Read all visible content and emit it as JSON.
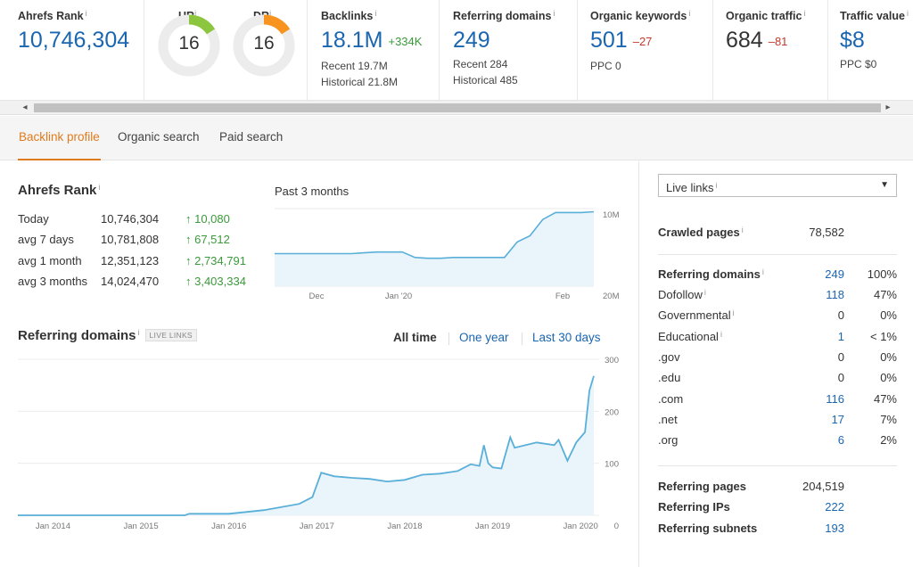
{
  "metrics": {
    "ahrefs_rank": {
      "label": "Ahrefs Rank",
      "info": "i",
      "value": "10,746,304"
    },
    "ur": {
      "label": "UR",
      "info": "i",
      "value": "16",
      "fraction": 0.16,
      "color": "#8cc63f"
    },
    "dr": {
      "label": "DR",
      "info": "i",
      "value": "16",
      "fraction": 0.16,
      "color": "#f7931e"
    },
    "backlinks": {
      "label": "Backlinks",
      "info": "i",
      "value": "18.1M",
      "delta": "+334K",
      "recent": "Recent 19.7M",
      "historical": "Historical 21.8M"
    },
    "referring_domains": {
      "label": "Referring domains",
      "info": "i",
      "value": "249",
      "recent": "Recent 284",
      "historical": "Historical 485"
    },
    "organic_keywords": {
      "label": "Organic keywords",
      "info": "i",
      "value": "501",
      "delta": "–27",
      "ppc": "PPC 0"
    },
    "organic_traffic": {
      "label": "Organic traffic",
      "info": "i",
      "value": "684",
      "delta": "–81"
    },
    "traffic_value": {
      "label": "Traffic value",
      "info": "i",
      "value": "$8",
      "ppc": "PPC $0"
    }
  },
  "scroll": {
    "left_arrow": "◂",
    "right_arrow": "▸"
  },
  "tabs": [
    {
      "label": "Backlink profile",
      "active": true
    },
    {
      "label": "Organic search",
      "active": false
    },
    {
      "label": "Paid search",
      "active": false
    }
  ],
  "ahrefs_rank_section": {
    "title": "Ahrefs Rank",
    "info": "i",
    "rows": [
      {
        "label": "Today",
        "value": "10,746,304",
        "delta": "↑ 10,080"
      },
      {
        "label": "avg 7 days",
        "value": "10,781,808",
        "delta": "↑ 67,512"
      },
      {
        "label": "avg 1 month",
        "value": "12,351,123",
        "delta": "↑ 2,734,791"
      },
      {
        "label": "avg 3 months",
        "value": "14,024,470",
        "delta": "↑ 3,403,334"
      }
    ],
    "chart_caption": "Past 3 months"
  },
  "referring_domains_section": {
    "title": "Referring domains",
    "info": "i",
    "badge": "LIVE LINKS",
    "time_tabs": [
      {
        "label": "All time",
        "active": true
      },
      {
        "label": "One year",
        "active": false
      },
      {
        "label": "Last 30 days",
        "active": false
      }
    ]
  },
  "chart_data": [
    {
      "type": "area",
      "title": "",
      "x_ticks": [
        "Dec",
        "Jan '20",
        "Feb"
      ],
      "y_ticks": [
        "10M",
        "20M"
      ],
      "y_reversed": true,
      "ylim": [
        10000000,
        20000000
      ],
      "x": [
        0,
        4,
        8,
        12,
        16,
        20,
        24,
        28,
        32,
        36,
        40,
        44,
        48,
        52,
        56,
        60,
        64,
        68,
        72,
        76,
        80,
        84,
        88,
        92,
        96,
        100
      ],
      "values": [
        15800000,
        15800000,
        15800000,
        15800000,
        15800000,
        15800000,
        15800000,
        15700000,
        15600000,
        15600000,
        15600000,
        16300000,
        16400000,
        16400000,
        16300000,
        16300000,
        16300000,
        16300000,
        16300000,
        14300000,
        13500000,
        11400000,
        10500000,
        10500000,
        10500000,
        10400000
      ],
      "color": "#5aafd8"
    },
    {
      "type": "area",
      "title": "",
      "x_ticks": [
        "Jan 2014",
        "Jan 2015",
        "Jan 2016",
        "Jan 2017",
        "Jan 2018",
        "Jan 2019",
        "Jan 2020"
      ],
      "y_ticks": [
        "0",
        "100",
        "200",
        "300"
      ],
      "ylim": [
        0,
        300
      ],
      "x": [
        2013.6,
        2014,
        2014.5,
        2015,
        2015.5,
        2015.55,
        2016,
        2016.4,
        2016.8,
        2016.95,
        2017.05,
        2017.2,
        2017.4,
        2017.6,
        2017.8,
        2018,
        2018.2,
        2018.4,
        2018.6,
        2018.75,
        2018.85,
        2018.9,
        2018.95,
        2019,
        2019.1,
        2019.2,
        2019.25,
        2019.5,
        2019.7,
        2019.75,
        2019.85,
        2019.95,
        2020.05,
        2020.1,
        2020.15
      ],
      "values": [
        0,
        0,
        0,
        0,
        0,
        3,
        3,
        10,
        22,
        35,
        82,
        75,
        72,
        70,
        65,
        68,
        78,
        80,
        85,
        98,
        95,
        135,
        100,
        92,
        90,
        150,
        130,
        140,
        135,
        145,
        105,
        140,
        160,
        240,
        268
      ],
      "color": "#5aafd8"
    }
  ],
  "right_panel": {
    "select": {
      "label": "Live links",
      "info": "i",
      "caret": "▼"
    },
    "crawled_pages": {
      "label": "Crawled pages",
      "info": "i",
      "value": "78,582"
    },
    "referring_domains": {
      "label": "Referring domains",
      "info": "i",
      "value": "249",
      "pct": "100%"
    },
    "breakdown": [
      {
        "label": "Dofollow",
        "info": "i",
        "value": "118",
        "pct": "47%",
        "link": true
      },
      {
        "label": "Governmental",
        "info": "i",
        "value": "0",
        "pct": "0%",
        "link": false
      },
      {
        "label": "Educational",
        "info": "i",
        "value": "1",
        "pct": "< 1%",
        "link": true
      },
      {
        "label": ".gov",
        "info": "",
        "value": "0",
        "pct": "0%",
        "link": false
      },
      {
        "label": ".edu",
        "info": "",
        "value": "0",
        "pct": "0%",
        "link": false
      },
      {
        "label": ".com",
        "info": "",
        "value": "116",
        "pct": "47%",
        "link": true
      },
      {
        "label": ".net",
        "info": "",
        "value": "17",
        "pct": "7%",
        "link": true
      },
      {
        "label": ".org",
        "info": "",
        "value": "6",
        "pct": "2%",
        "link": true
      }
    ],
    "totals": [
      {
        "label": "Referring pages",
        "value": "204,519",
        "link": false
      },
      {
        "label": "Referring IPs",
        "value": "222",
        "link": true
      },
      {
        "label": "Referring subnets",
        "value": "193",
        "link": true
      }
    ]
  }
}
